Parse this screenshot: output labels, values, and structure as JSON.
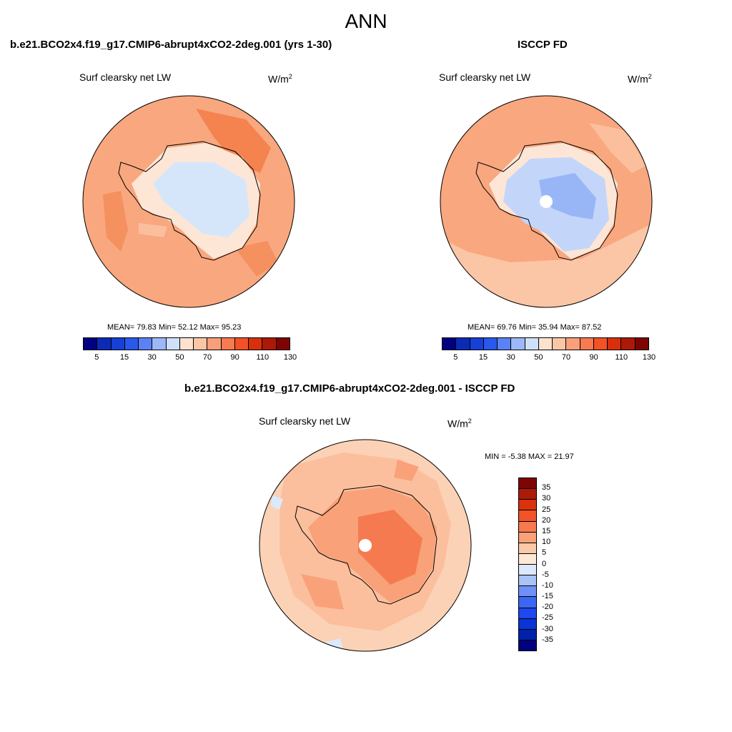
{
  "main_title": "ANN",
  "palette": {
    "sequential": [
      "#000080",
      "#0b2bb4",
      "#1740d6",
      "#2a58ea",
      "#5a82f4",
      "#9db8f7",
      "#cfe0fa",
      "#fde3cf",
      "#fbc6a6",
      "#f99f7a",
      "#f77a52",
      "#f25225",
      "#d8300d",
      "#ac1908",
      "#7e0404"
    ],
    "diverging": [
      "#000080",
      "#0022aa",
      "#0a34d8",
      "#1f48ef",
      "#3c66f4",
      "#6f90f6",
      "#a9c2f8",
      "#dce8fb",
      "#fde8d8",
      "#fcc9a8",
      "#f9a279",
      "#f67a50",
      "#f25427",
      "#d9320d",
      "#ae1a08",
      "#7e0404"
    ]
  },
  "panels": {
    "model": {
      "title": "b.e21.BCO2x4.f19_g17.CMIP6-abrupt4xCO2-2deg.001 (yrs 1-30)",
      "field": "Surf clearsky net LW",
      "units": "W/m",
      "units_sup": "2",
      "stats": "MEAN=  79.83  Min=  52.12  Max=  95.23",
      "ticks": [
        "5",
        "15",
        "30",
        "50",
        "70",
        "90",
        "110",
        "130"
      ]
    },
    "obs": {
      "title": "ISCCP FD",
      "field": "Surf clearsky net LW",
      "units": "W/m",
      "units_sup": "2",
      "stats": "MEAN=  69.76  Min=  35.94  Max=  87.52",
      "ticks": [
        "5",
        "15",
        "30",
        "50",
        "70",
        "90",
        "110",
        "130"
      ]
    },
    "diff": {
      "title": "b.e21.BCO2x4.f19_g17.CMIP6-abrupt4xCO2-2deg.001 - ISCCP FD",
      "field": "Surf clearsky net LW",
      "units": "W/m",
      "units_sup": "2",
      "stats": "MIN =  -5.38 MAX =  21.97",
      "ticks": [
        "35",
        "30",
        "25",
        "20",
        "15",
        "10",
        "5",
        "0",
        "-5",
        "-10",
        "-15",
        "-20",
        "-25",
        "-30",
        "-35"
      ]
    }
  }
}
